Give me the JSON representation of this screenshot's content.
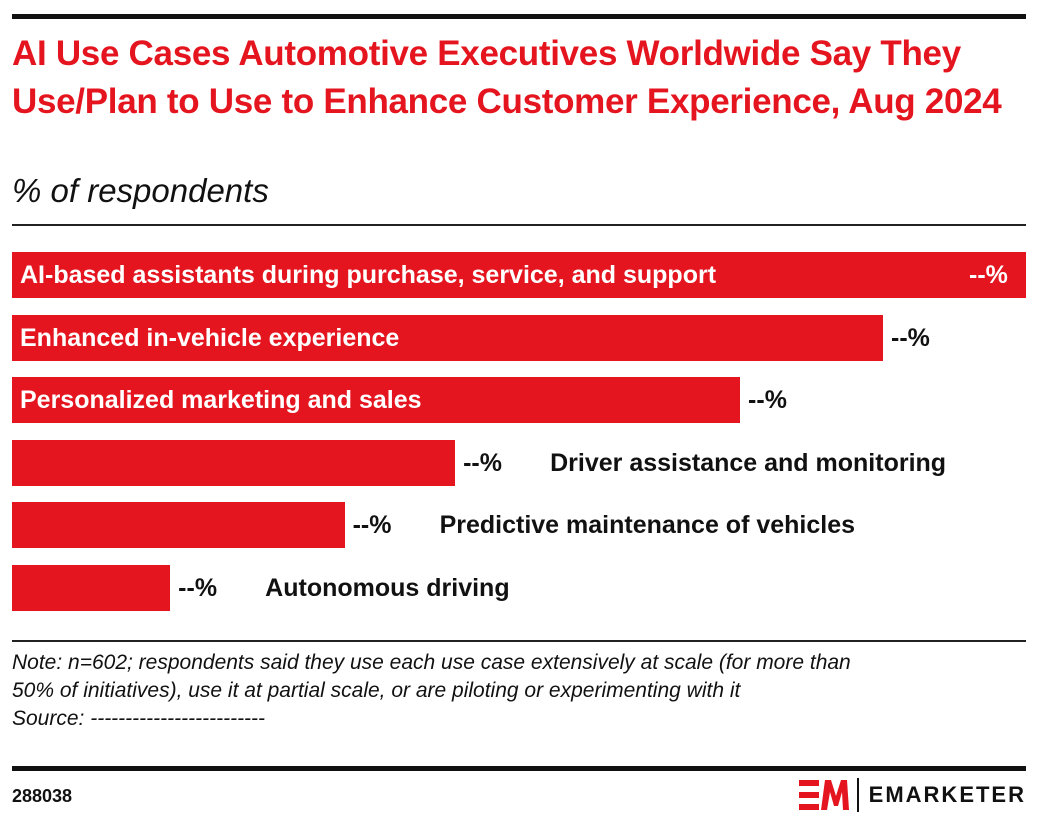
{
  "chart_data": {
    "type": "bar",
    "orientation": "horizontal",
    "title": "AI Use Cases Automotive Executives Worldwide Say They Use/Plan to Use to Enhance Customer Experience, Aug 2024",
    "subtitle": "% of respondents",
    "categories": [
      "AI-based assistants during purchase, service, and support",
      "Enhanced in-vehicle experience",
      "Personalized marketing and sales",
      "Driver assistance and monitoring",
      "Predictive maintenance of vehicles",
      "Autonomous driving"
    ],
    "values": [
      100,
      85.9,
      71.8,
      43.7,
      32.8,
      15.6
    ],
    "value_note": "relative bar lengths (largest = 100); printed values are masked",
    "value_labels": [
      "--%",
      "--%",
      "--%",
      "--%",
      "--%",
      "--%"
    ],
    "bar_color": "#e4151f",
    "grid": false,
    "legend": "none"
  },
  "note": [
    "Note: n=602; respondents said they use each use case extensively at scale (for more than",
    "50% of initiatives), use it at partial scale, or are piloting or experimenting with it",
    "Source: -------------------------"
  ],
  "footer": {
    "chart_id": "288038",
    "brand": "EMARKETER",
    "brand_color": "#e4151f"
  }
}
